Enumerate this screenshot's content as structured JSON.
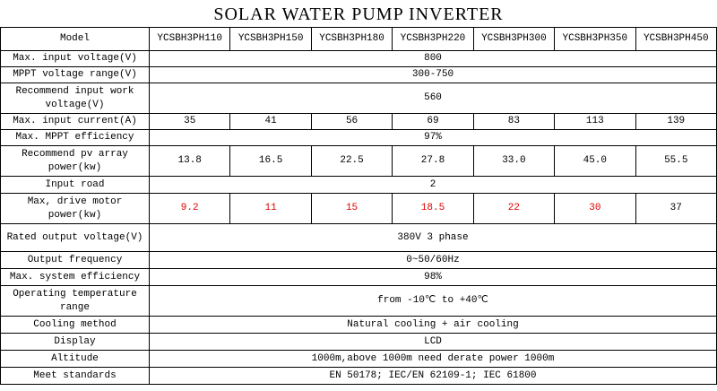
{
  "title": "SOLAR WATER PUMP INVERTER",
  "table": {
    "header": {
      "label": "Model",
      "models": [
        "YCSBH3PH110",
        "YCSBH3PH150",
        "YCSBH3PH180",
        "YCSBH3PH220",
        "YCSBH3PH300",
        "YCSBH3PH350",
        "YCSBH3PH450"
      ]
    },
    "rows": [
      {
        "label": "Max. input voltage(V)",
        "values": [
          "800"
        ]
      },
      {
        "label": "MPPT voltage range(V)",
        "values": [
          "300-750"
        ]
      },
      {
        "label": "Recommend input work voltage(V)",
        "values": [
          "560"
        ]
      },
      {
        "label": "Max. input current(A)",
        "values": [
          "35",
          "41",
          "56",
          "69",
          "83",
          "113",
          "139"
        ]
      },
      {
        "label": "Max. MPPT efficiency",
        "values": [
          "97%"
        ]
      },
      {
        "label": "Recommend pv array power(kw)",
        "values": [
          "13.8",
          "16.5",
          "22.5",
          "27.8",
          "33.0",
          "45.0",
          "55.5"
        ]
      },
      {
        "label": "Input road",
        "values": [
          "2"
        ]
      },
      {
        "label": "Max, drive motor power(kw)",
        "values": [
          "9.2",
          "11",
          "15",
          "18.5",
          "22",
          "30",
          "37"
        ],
        "value_colors": [
          "#e00000",
          "#e00000",
          "#e00000",
          "#e00000",
          "#e00000",
          "#e00000",
          "#000000"
        ]
      },
      {
        "label": "Rated output voltage(V)",
        "values": [
          "380V 3 phase"
        ]
      },
      {
        "label": "Output frequency",
        "values": [
          "0~50/60Hz"
        ]
      },
      {
        "label": "Max. system efficiency",
        "values": [
          "98%"
        ]
      },
      {
        "label": "Operating temperature range",
        "values": [
          "from -10℃ to +40℃"
        ]
      },
      {
        "label": "Cooling method",
        "values": [
          "Natural cooling + air cooling"
        ]
      },
      {
        "label": "Display",
        "values": [
          "LCD"
        ]
      },
      {
        "label": "Altitude",
        "values": [
          "1000m,above 1000m need derate power 1000m"
        ]
      },
      {
        "label": "Meet standards",
        "values": [
          "EN 50178; IEC/EN 62109-1; IEC 61800"
        ]
      }
    ]
  }
}
